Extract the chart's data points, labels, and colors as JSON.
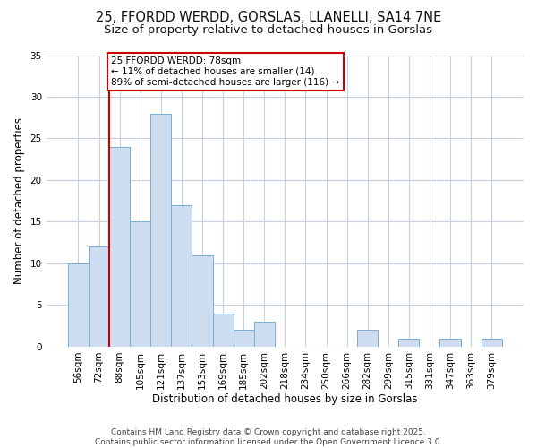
{
  "title1": "25, FFORDD WERDD, GORSLAS, LLANELLI, SA14 7NE",
  "title2": "Size of property relative to detached houses in Gorslas",
  "xlabel": "Distribution of detached houses by size in Gorslas",
  "ylabel": "Number of detached properties",
  "categories": [
    "56sqm",
    "72sqm",
    "88sqm",
    "105sqm",
    "121sqm",
    "137sqm",
    "153sqm",
    "169sqm",
    "185sqm",
    "202sqm",
    "218sqm",
    "234sqm",
    "250sqm",
    "266sqm",
    "282sqm",
    "299sqm",
    "315sqm",
    "331sqm",
    "347sqm",
    "363sqm",
    "379sqm"
  ],
  "values": [
    10,
    12,
    24,
    15,
    28,
    17,
    11,
    4,
    2,
    3,
    0,
    0,
    0,
    0,
    2,
    0,
    1,
    0,
    1,
    0,
    1
  ],
  "bar_color": "#cfddf0",
  "bar_edge_color": "#7aaed4",
  "grid_color": "#c8d0e0",
  "bg_color": "#ffffff",
  "ann_edge_color": "#cc0000",
  "vline_color": "#cc0000",
  "vline_x": 1.5,
  "ann_line1": "25 FFORDD WERDD: 78sqm",
  "ann_line2": "← 11% of detached houses are smaller (14)",
  "ann_line3": "89% of semi-detached houses are larger (116) →",
  "ylim_max": 35,
  "yticks": [
    0,
    5,
    10,
    15,
    20,
    25,
    30,
    35
  ],
  "footer_line1": "Contains HM Land Registry data © Crown copyright and database right 2025.",
  "footer_line2": "Contains public sector information licensed under the Open Government Licence 3.0.",
  "title_fontsize": 10.5,
  "subtitle_fontsize": 9.5,
  "axis_label_fontsize": 8.5,
  "tick_fontsize": 7.5,
  "ann_fontsize": 7.5,
  "footer_fontsize": 6.5
}
